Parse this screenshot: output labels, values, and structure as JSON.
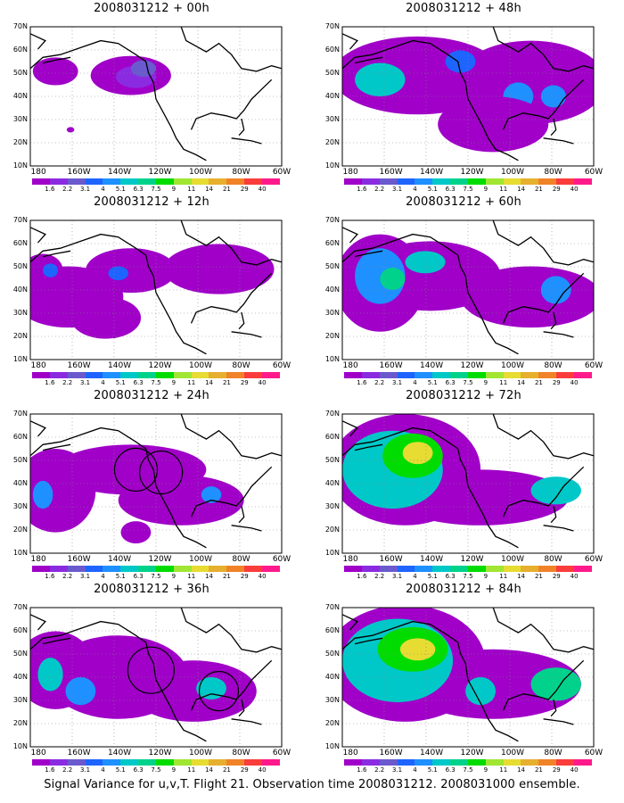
{
  "caption": "Signal Variance for u,v,T. Flight 21. Observation time 2008031212. 2008031000 ensemble.",
  "lat_labels": [
    "70N",
    "60N",
    "50N",
    "40N",
    "30N",
    "20N",
    "10N"
  ],
  "lon_labels": [
    "180",
    "160W",
    "140W",
    "120W",
    "100W",
    "80W",
    "60W"
  ],
  "legend": {
    "colors": [
      "#a000c8",
      "#8a2be2",
      "#6a5acd",
      "#1e64ff",
      "#1e90ff",
      "#00c8c8",
      "#00d28c",
      "#00dc00",
      "#a0e632",
      "#e6dc32",
      "#e6af2d",
      "#f08228",
      "#fa3c3c",
      "#ff1a8c"
    ],
    "labels": [
      "1.6",
      "2.2",
      "3.1",
      "4",
      "5.1",
      "6.3",
      "7.5",
      "9",
      "11",
      "14",
      "21",
      "29",
      "40"
    ]
  },
  "panels": [
    {
      "title": "2008031212 + 00h",
      "intensity": 0
    },
    {
      "title": "2008031212 + 12h",
      "intensity": 1
    },
    {
      "title": "2008031212 + 24h",
      "intensity": 2
    },
    {
      "title": "2008031212 + 36h",
      "intensity": 3
    },
    {
      "title": "2008031212 + 48h",
      "intensity": 2
    },
    {
      "title": "2008031212 + 60h",
      "intensity": 3
    },
    {
      "title": "2008031212 + 72h",
      "intensity": 4
    },
    {
      "title": "2008031212 + 84h",
      "intensity": 5
    }
  ]
}
